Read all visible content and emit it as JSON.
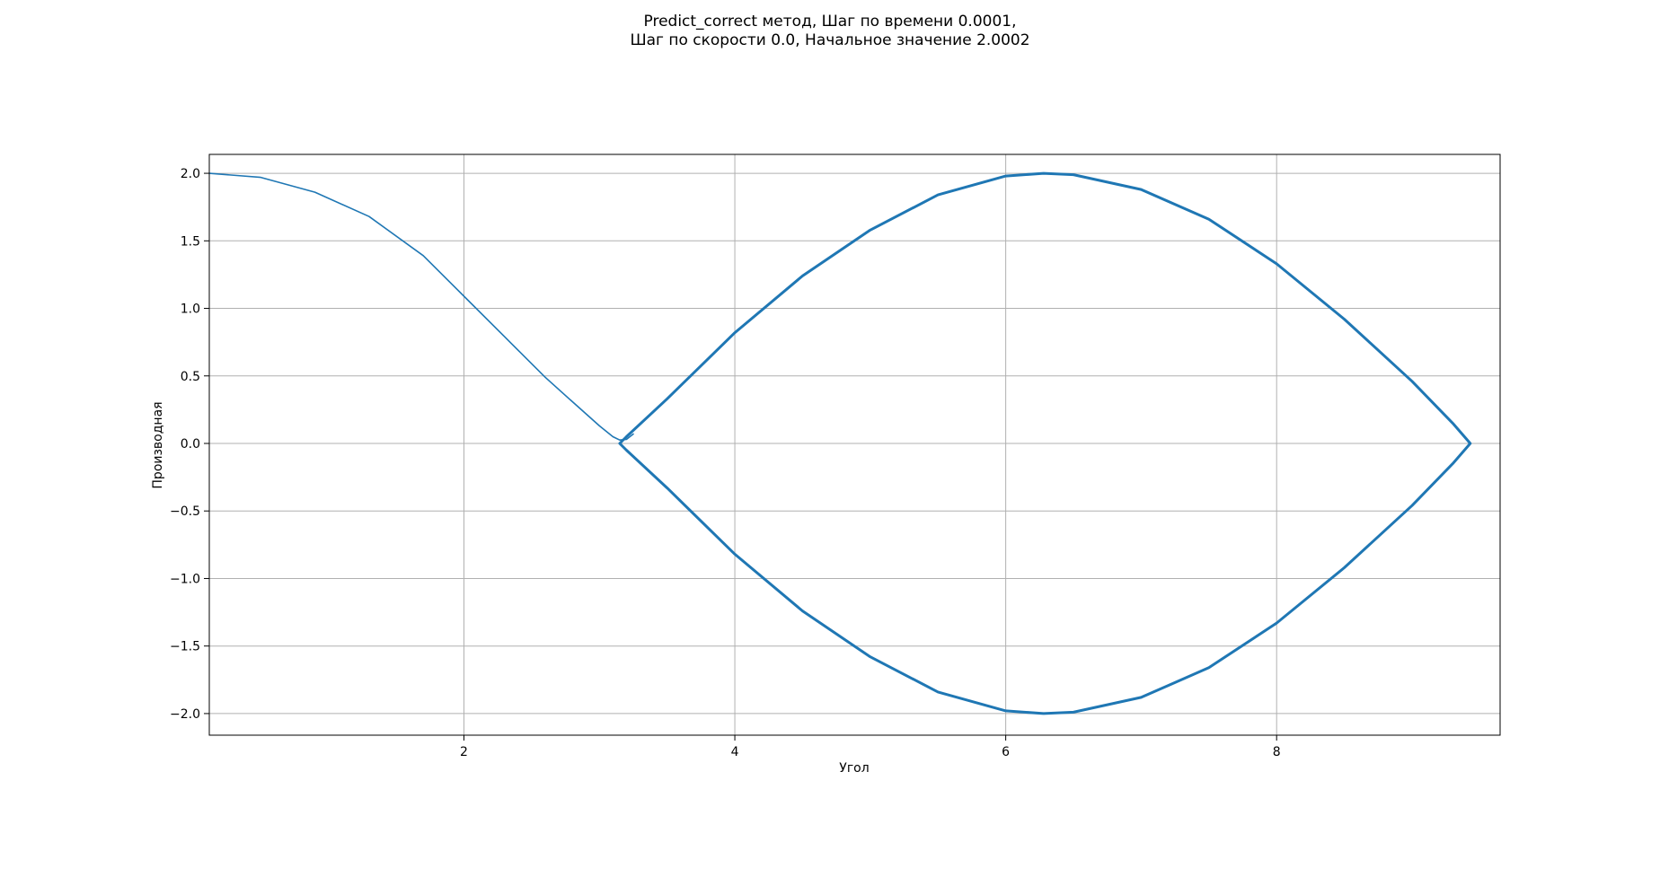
{
  "chart_data": {
    "type": "line",
    "title": [
      "Predict_correct метод, Шаг по времени 0.0001,",
      "Шаг по скорости 0.0, Начальное значение 2.0002"
    ],
    "xlabel": "Угол",
    "ylabel": "Производная",
    "xlim": [
      0.12,
      9.65
    ],
    "ylim": [
      -2.16,
      2.14
    ],
    "xticks": [
      2,
      4,
      6,
      8
    ],
    "xtick_labels": [
      "2",
      "4",
      "6",
      "8"
    ],
    "yticks": [
      2.0,
      1.5,
      1.0,
      0.5,
      0.0,
      -0.5,
      -1.0,
      -1.5,
      -2.0
    ],
    "ytick_labels": [
      "2.0",
      "1.5",
      "1.0",
      "0.5",
      "0.0",
      "−0.5",
      "−1.0",
      "−1.5",
      "−2.0"
    ],
    "grid": true,
    "series": [
      {
        "color": "#1f77b4",
        "x": [
          0.12,
          0.5,
          0.9,
          1.3,
          1.7,
          2.0,
          2.3,
          2.6,
          2.8,
          3.0,
          3.1,
          3.15,
          3.2,
          3.25
        ],
        "y": [
          2.0,
          1.97,
          1.86,
          1.68,
          1.39,
          1.09,
          0.79,
          0.49,
          0.31,
          0.13,
          0.05,
          0.025,
          0.03,
          0.07
        ]
      },
      {
        "color": "#1f77b4",
        "x": [
          3.2,
          3.5,
          4.0,
          4.5,
          5.0,
          5.5,
          6.0,
          6.28,
          6.5,
          7.0,
          7.5,
          8.0,
          8.5,
          9.0,
          9.3,
          9.43,
          9.3,
          9.0,
          8.5,
          8.0,
          7.5,
          7.0,
          6.5,
          6.28,
          6.0,
          5.5,
          5.0,
          4.5,
          4.0,
          3.5,
          3.2,
          3.15,
          3.2
        ],
        "y": [
          0.05,
          0.33,
          0.82,
          1.24,
          1.58,
          1.84,
          1.98,
          2.0,
          1.99,
          1.88,
          1.66,
          1.33,
          0.92,
          0.46,
          0.15,
          0.0,
          -0.15,
          -0.46,
          -0.92,
          -1.33,
          -1.66,
          -1.88,
          -1.99,
          -2.0,
          -1.98,
          -1.84,
          -1.58,
          -1.24,
          -0.82,
          -0.33,
          -0.05,
          0.0,
          0.05
        ]
      }
    ]
  }
}
